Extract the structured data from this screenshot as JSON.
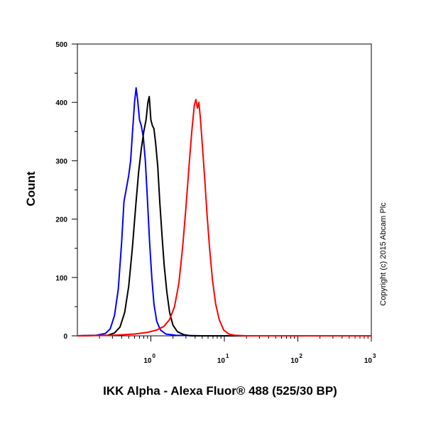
{
  "chart_data": {
    "type": "line",
    "title": "",
    "xlabel": "IKK Alpha - Alexa Fluor® 488 (525/30 BP)",
    "ylabel": "Count",
    "xscale": "log",
    "xlim": [
      0.1,
      1000
    ],
    "ylim": [
      0,
      500
    ],
    "x_ticks": [
      {
        "base": "10",
        "exp": "0",
        "value": 1
      },
      {
        "base": "10",
        "exp": "1",
        "value": 10
      },
      {
        "base": "10",
        "exp": "2",
        "value": 100
      },
      {
        "base": "10",
        "exp": "3",
        "value": 1000
      }
    ],
    "y_ticks": [
      "0",
      "100",
      "200",
      "300",
      "400",
      "500"
    ],
    "y_tick_values": [
      0,
      100,
      200,
      300,
      400,
      500
    ],
    "grid": false,
    "legend": "none",
    "annotations": [
      "Copyright (c) 2015 Abcam Plc"
    ],
    "series": [
      {
        "color": "#0000ff",
        "points": [
          [
            0.1,
            0
          ],
          [
            0.18,
            1
          ],
          [
            0.24,
            4
          ],
          [
            0.28,
            12
          ],
          [
            0.32,
            35
          ],
          [
            0.36,
            80
          ],
          [
            0.4,
            160
          ],
          [
            0.43,
            230
          ],
          [
            0.46,
            250
          ],
          [
            0.5,
            275
          ],
          [
            0.53,
            300
          ],
          [
            0.56,
            345
          ],
          [
            0.6,
            400
          ],
          [
            0.63,
            425
          ],
          [
            0.66,
            405
          ],
          [
            0.7,
            370
          ],
          [
            0.74,
            360
          ],
          [
            0.79,
            340
          ],
          [
            0.84,
            300
          ],
          [
            0.9,
            230
          ],
          [
            0.96,
            160
          ],
          [
            1.03,
            100
          ],
          [
            1.1,
            55
          ],
          [
            1.2,
            25
          ],
          [
            1.35,
            10
          ],
          [
            1.6,
            3
          ],
          [
            2.2,
            1
          ],
          [
            5,
            0
          ],
          [
            1000,
            0
          ]
        ]
      },
      {
        "color": "#000000",
        "points": [
          [
            0.1,
            0
          ],
          [
            0.26,
            1
          ],
          [
            0.32,
            5
          ],
          [
            0.38,
            15
          ],
          [
            0.44,
            40
          ],
          [
            0.5,
            85
          ],
          [
            0.56,
            150
          ],
          [
            0.62,
            220
          ],
          [
            0.68,
            280
          ],
          [
            0.74,
            320
          ],
          [
            0.8,
            350
          ],
          [
            0.86,
            370
          ],
          [
            0.91,
            400
          ],
          [
            0.95,
            410
          ],
          [
            1.0,
            370
          ],
          [
            1.05,
            360
          ],
          [
            1.1,
            355
          ],
          [
            1.16,
            330
          ],
          [
            1.24,
            290
          ],
          [
            1.32,
            230
          ],
          [
            1.42,
            170
          ],
          [
            1.52,
            120
          ],
          [
            1.65,
            75
          ],
          [
            1.8,
            40
          ],
          [
            2.0,
            18
          ],
          [
            2.3,
            7
          ],
          [
            2.8,
            2
          ],
          [
            3.5,
            0
          ],
          [
            1000,
            0
          ]
        ]
      },
      {
        "color": "#ff0000",
        "points": [
          [
            0.1,
            0
          ],
          [
            0.3,
            1
          ],
          [
            0.6,
            3
          ],
          [
            0.9,
            6
          ],
          [
            1.2,
            10
          ],
          [
            1.5,
            16
          ],
          [
            1.8,
            28
          ],
          [
            2.1,
            50
          ],
          [
            2.4,
            90
          ],
          [
            2.7,
            150
          ],
          [
            3.0,
            220
          ],
          [
            3.3,
            290
          ],
          [
            3.6,
            350
          ],
          [
            3.9,
            395
          ],
          [
            4.1,
            405
          ],
          [
            4.3,
            390
          ],
          [
            4.5,
            400
          ],
          [
            4.7,
            375
          ],
          [
            5.0,
            330
          ],
          [
            5.4,
            270
          ],
          [
            5.8,
            210
          ],
          [
            6.3,
            150
          ],
          [
            6.9,
            95
          ],
          [
            7.6,
            55
          ],
          [
            8.5,
            28
          ],
          [
            9.8,
            10
          ],
          [
            11.5,
            3
          ],
          [
            14,
            1
          ],
          [
            20,
            0
          ],
          [
            1000,
            0
          ]
        ]
      }
    ]
  }
}
